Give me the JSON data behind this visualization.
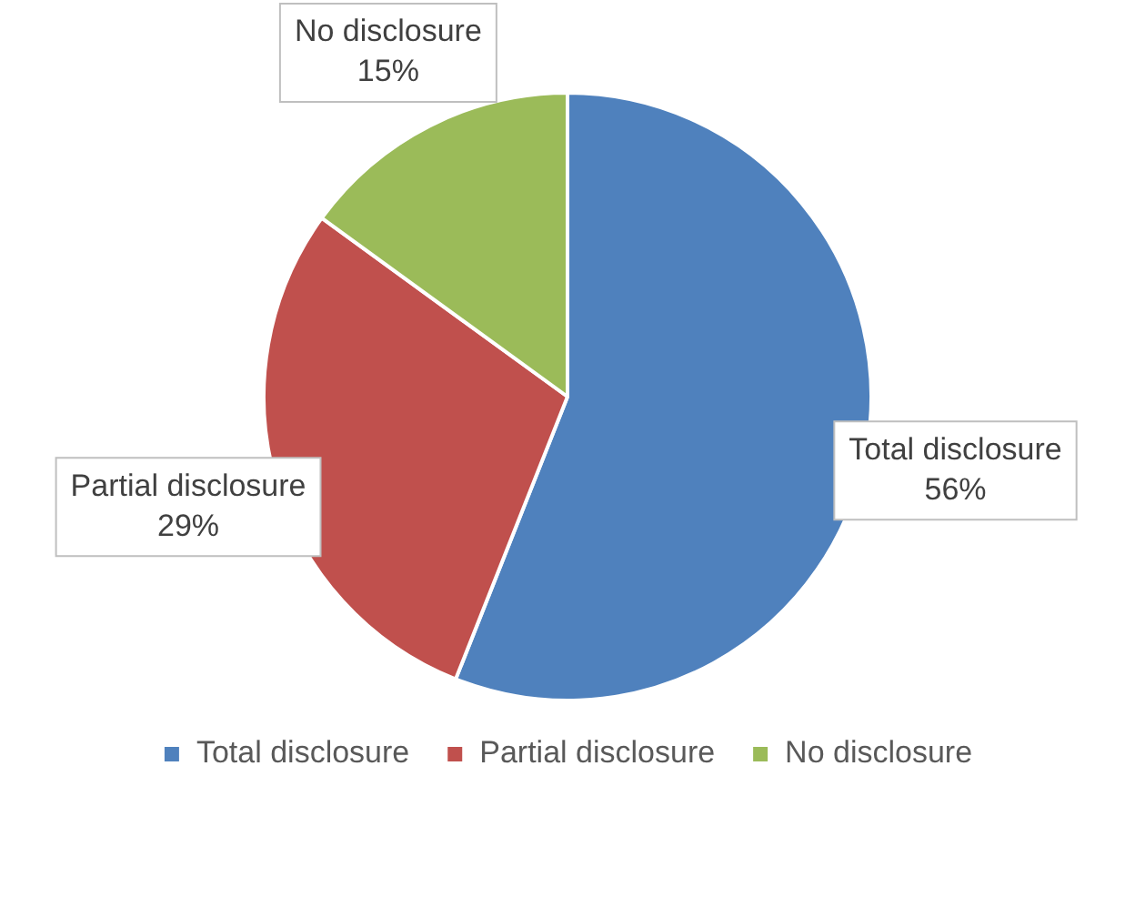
{
  "chart_data": {
    "type": "pie",
    "categories": [
      "Total disclosure",
      "Partial disclosure",
      "No disclosure"
    ],
    "values": [
      56,
      29,
      15
    ],
    "colors": [
      "#4f81bd",
      "#c0504d",
      "#9bbb59"
    ],
    "value_labels": [
      "56%",
      "29%",
      "15%"
    ],
    "legend": "bottom"
  }
}
